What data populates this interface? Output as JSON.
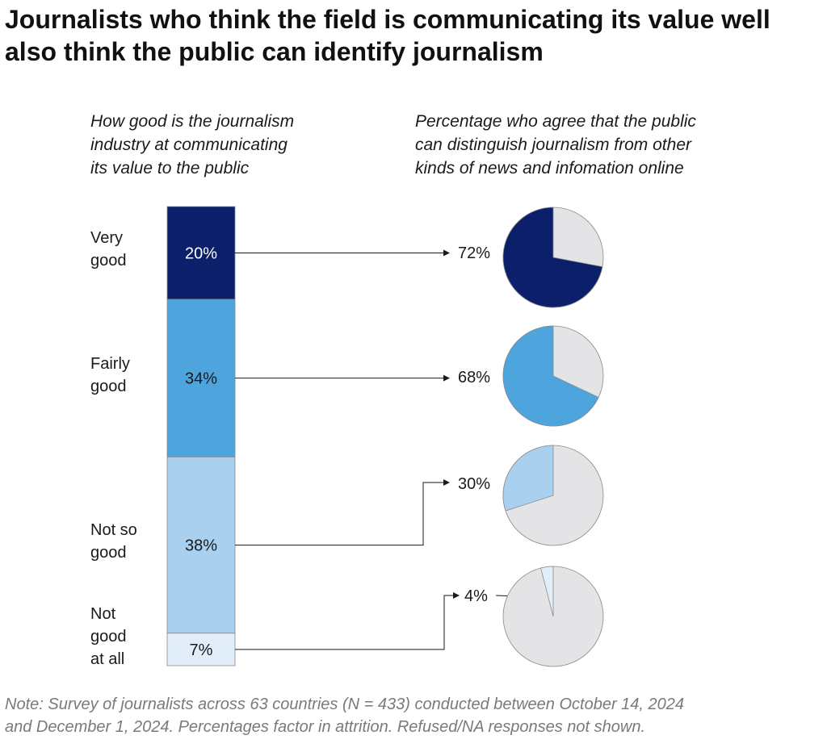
{
  "title": "Journalists who think the field is communicating its value well\nalso think the public can identify journalism",
  "left_subtitle": "How good is the journalism\nindustry at communicating\nits value to the public",
  "right_subtitle": "Percentage who agree that the public\ncan distinguish journalism from other\nkinds of news and infomation online",
  "note": "Note: Survey of journalists across 63 countries (N = 433) conducted between October 14, 2024\nand December 1, 2024. Percentages factor in attrition. Refused/NA responses not shown.",
  "chart_data": {
    "type": "bar",
    "stacked_bar": {
      "categories": [
        [
          "Very",
          "good"
        ],
        [
          "Fairly",
          "good"
        ],
        [
          "Not so",
          "good"
        ],
        [
          "Not",
          "good",
          "at all"
        ]
      ],
      "values": [
        20,
        34,
        38,
        7
      ],
      "labels": [
        "20%",
        "34%",
        "38%",
        "7%"
      ],
      "colors": [
        "#0c1f6b",
        "#4ea4dc",
        "#a9d0ee",
        "#e1eef9"
      ],
      "label_colors": [
        "#ffffff",
        "#1a1a1a",
        "#1a1a1a",
        "#1a1a1a"
      ]
    },
    "pies": {
      "values": [
        72,
        68,
        30,
        4
      ],
      "labels": [
        "72%",
        "68%",
        "30%",
        "4%"
      ],
      "colors": [
        "#0c1f6b",
        "#4ea4dc",
        "#a9d0ee",
        "#e1eef9"
      ],
      "remainder_color": "#e4e4e6"
    }
  }
}
